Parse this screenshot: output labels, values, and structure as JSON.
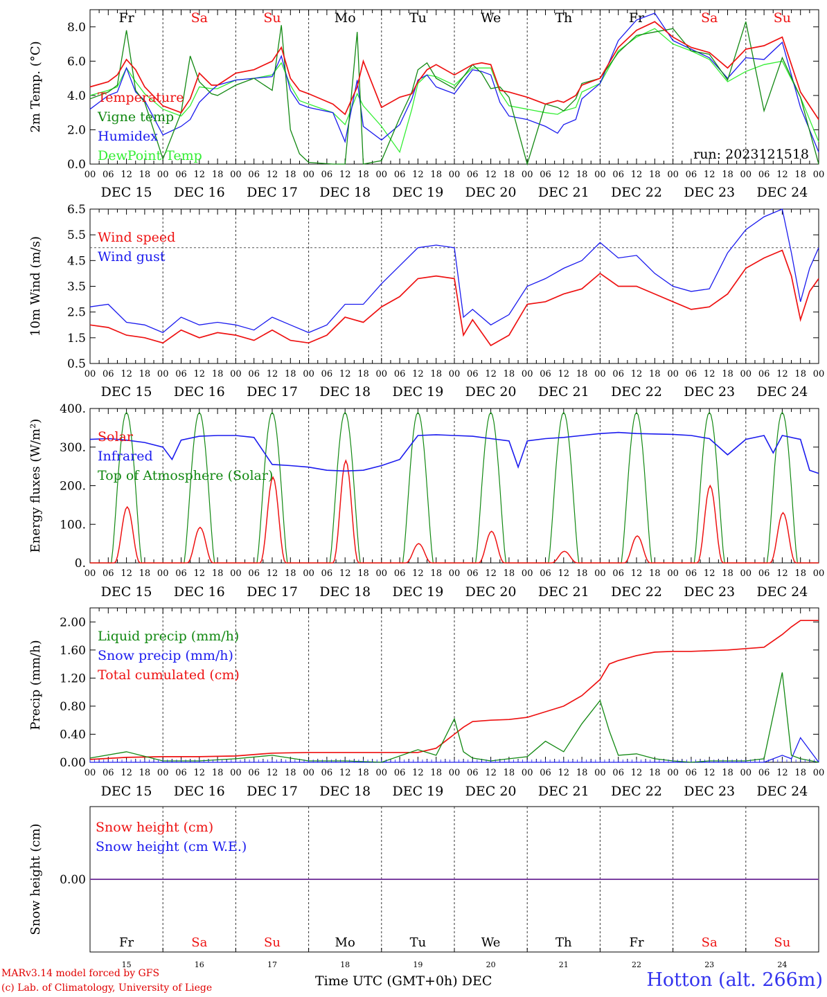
{
  "colors": {
    "temperature": "#ee1111",
    "vigne": "#118811",
    "humidex": "#1a1aee",
    "dewpoint": "#33ee33",
    "wind_speed": "#ee1111",
    "wind_gust": "#1a1aee",
    "solar": "#ee1111",
    "infrared": "#1a1aee",
    "toa": "#118811",
    "liquid": "#118811",
    "snow_precip": "#1a1aee",
    "total_cum": "#ee1111",
    "snow_height": "#ee1111",
    "snow_we": "#1a1aee",
    "weekend": "#ee1111",
    "weekday": "#000000"
  },
  "days": {
    "top": [
      {
        "label": "Fr",
        "weekend": false
      },
      {
        "label": "Sa",
        "weekend": true
      },
      {
        "label": "Su",
        "weekend": true
      },
      {
        "label": "Mo",
        "weekend": false
      },
      {
        "label": "Tu",
        "weekend": false
      },
      {
        "label": "We",
        "weekend": false
      },
      {
        "label": "Th",
        "weekend": false
      },
      {
        "label": "Fr",
        "weekend": false
      },
      {
        "label": "Sa",
        "weekend": true
      },
      {
        "label": "Su",
        "weekend": true
      }
    ],
    "dates": [
      "DEC 15",
      "DEC 16",
      "DEC 17",
      "DEC 18",
      "DEC 19",
      "DEC 20",
      "DEC 21",
      "DEC 22",
      "DEC 23",
      "DEC 24"
    ],
    "day_numbers": [
      "15",
      "16",
      "17",
      "18",
      "19",
      "20",
      "21",
      "22",
      "23",
      "24"
    ],
    "hour_ticks": [
      "00",
      "06",
      "12",
      "18"
    ],
    "final_tick": "00"
  },
  "footer": {
    "credit_line1": "MARv3.14 model forced by GFS",
    "credit_line2": "(c) Lab. of Climatology, University of Liege",
    "x_title": "Time UTC (GMT+0h) DEC",
    "station": "Hotton (alt. 266m)"
  },
  "chart_data": [
    {
      "type": "line",
      "ylabel": "2m Temp. (°C)",
      "ylim": [
        0,
        9
      ],
      "yticks": [
        "0.0",
        "2.0",
        "4.0",
        "6.0",
        "8.0"
      ],
      "annotation": "run: 2023121518",
      "grid": "vertical dashed lines at 00 UTC",
      "legend_position": "left",
      "x_hours": [
        0,
        6,
        9,
        12,
        15,
        18,
        24,
        30,
        33,
        36,
        40,
        42,
        48,
        54,
        60,
        63,
        66,
        69,
        72,
        80,
        84,
        88,
        90,
        96,
        102,
        106,
        108,
        111,
        114,
        120,
        126,
        129,
        132,
        135,
        138,
        144,
        150,
        154,
        156,
        160,
        162,
        168,
        174,
        180,
        186,
        192,
        198,
        204,
        210,
        216,
        222,
        228,
        234,
        240
      ],
      "series": [
        {
          "name": "Temperature",
          "color_key": "temperature",
          "values": [
            4.5,
            4.8,
            5.2,
            6.1,
            5.5,
            4.5,
            3.4,
            3.0,
            3.8,
            5.3,
            4.6,
            4.6,
            5.3,
            5.5,
            6.0,
            6.8,
            5.0,
            4.3,
            4.1,
            3.5,
            2.9,
            4.5,
            6.0,
            3.3,
            3.9,
            4.1,
            4.8,
            5.5,
            5.8,
            5.2,
            5.8,
            5.9,
            5.8,
            4.3,
            4.2,
            3.9,
            3.5,
            3.7,
            3.6,
            4.0,
            4.6,
            5.0,
            6.8,
            7.8,
            8.3,
            7.4,
            6.8,
            6.5,
            5.6,
            6.7,
            6.9,
            7.4,
            4.2,
            2.6
          ]
        },
        {
          "name": "Vigne temp",
          "color_key": "vigne",
          "values": [
            3.8,
            4.2,
            4.6,
            7.8,
            4.3,
            3.6,
            0.3,
            3.0,
            6.3,
            4.8,
            4.1,
            4.0,
            4.6,
            5.0,
            4.3,
            8.1,
            2.0,
            0.6,
            0.1,
            0.0,
            0.0,
            7.7,
            0.0,
            0.2,
            2.7,
            4.2,
            5.5,
            5.9,
            5.0,
            4.4,
            5.8,
            5.3,
            4.4,
            4.5,
            3.9,
            0.0,
            3.5,
            3.3,
            3.1,
            3.8,
            4.7,
            5.0,
            6.5,
            7.5,
            7.7,
            7.9,
            6.6,
            6.4,
            4.9,
            8.3,
            3.1,
            6.2,
            3.9,
            0.0
          ]
        },
        {
          "name": "Humidex",
          "color_key": "humidex",
          "values": [
            3.2,
            4.0,
            4.2,
            5.6,
            4.2,
            3.7,
            1.7,
            2.2,
            2.6,
            3.6,
            4.3,
            4.6,
            4.9,
            5.0,
            5.1,
            6.3,
            4.3,
            3.5,
            3.3,
            3.0,
            1.3,
            4.9,
            2.2,
            1.4,
            2.3,
            3.8,
            4.9,
            5.2,
            4.5,
            4.1,
            5.5,
            5.4,
            5.2,
            3.6,
            2.8,
            2.6,
            2.2,
            1.8,
            2.3,
            2.6,
            3.8,
            4.7,
            7.2,
            8.4,
            8.8,
            7.2,
            6.7,
            6.2,
            5.0,
            6.2,
            6.1,
            7.1,
            3.3,
            0.7
          ]
        },
        {
          "name": "DewPoint Temp",
          "color_key": "dewpoint",
          "values": [
            4.0,
            4.3,
            4.5,
            5.6,
            4.8,
            4.1,
            3.2,
            2.8,
            3.4,
            4.5,
            4.4,
            4.4,
            4.9,
            5.0,
            5.2,
            5.9,
            4.6,
            3.7,
            3.5,
            3.0,
            2.3,
            4.1,
            3.4,
            2.2,
            0.7,
            3.2,
            4.7,
            5.2,
            5.1,
            4.6,
            5.6,
            5.6,
            5.6,
            4.2,
            3.4,
            3.2,
            3.0,
            2.9,
            3.1,
            3.3,
            4.2,
            4.7,
            6.6,
            7.4,
            7.9,
            7.0,
            6.6,
            6.1,
            4.8,
            5.4,
            5.8,
            6.0,
            3.9,
            1.3
          ]
        }
      ]
    },
    {
      "type": "line",
      "ylabel": "10m Wind (m/s)",
      "ylim": [
        0.5,
        6.5
      ],
      "yticks": [
        "0.5",
        "1.5",
        "2.5",
        "3.5",
        "4.5",
        "5.5",
        "6.5"
      ],
      "reference_line": 5.0,
      "legend_position": "left",
      "x_hours": [
        0,
        6,
        12,
        18,
        24,
        30,
        36,
        42,
        48,
        54,
        60,
        66,
        72,
        78,
        84,
        90,
        96,
        102,
        108,
        114,
        120,
        123,
        126,
        132,
        138,
        144,
        150,
        156,
        162,
        168,
        174,
        180,
        186,
        192,
        198,
        204,
        210,
        216,
        222,
        228,
        231,
        234,
        237,
        240
      ],
      "series": [
        {
          "name": "Wind speed",
          "color_key": "wind_speed",
          "values": [
            2.0,
            1.9,
            1.6,
            1.5,
            1.3,
            1.8,
            1.5,
            1.7,
            1.6,
            1.4,
            1.8,
            1.4,
            1.3,
            1.6,
            2.3,
            2.1,
            2.7,
            3.1,
            3.8,
            3.9,
            3.8,
            1.6,
            2.2,
            1.2,
            1.6,
            2.8,
            2.9,
            3.2,
            3.4,
            4.0,
            3.5,
            3.5,
            3.2,
            2.9,
            2.6,
            2.7,
            3.2,
            4.2,
            4.6,
            4.9,
            3.9,
            2.2,
            3.3,
            3.8
          ]
        },
        {
          "name": "Wind gust",
          "color_key": "wind_gust",
          "values": [
            2.7,
            2.8,
            2.1,
            2.0,
            1.7,
            2.3,
            2.0,
            2.1,
            2.0,
            1.8,
            2.3,
            2.0,
            1.7,
            2.0,
            2.8,
            2.8,
            3.6,
            4.3,
            5.0,
            5.1,
            5.0,
            2.3,
            2.6,
            2.0,
            2.4,
            3.5,
            3.8,
            4.2,
            4.5,
            5.2,
            4.6,
            4.7,
            4.0,
            3.5,
            3.3,
            3.4,
            4.8,
            5.7,
            6.2,
            6.5,
            4.8,
            2.9,
            4.2,
            5.0
          ]
        }
      ]
    },
    {
      "type": "line",
      "ylabel": "Energy fluxes (W/m²)",
      "ylim": [
        0,
        400
      ],
      "yticks": [
        "0.",
        "100.",
        "200.",
        "300.",
        "400."
      ],
      "legend_position": "left",
      "series": [
        {
          "name": "Solar",
          "color_key": "solar",
          "daily_peaks": [
            145,
            92,
            222,
            265,
            50,
            82,
            30,
            70,
            200,
            130
          ]
        },
        {
          "name": "Infrared",
          "color_key": "infrared",
          "x_hours": [
            0,
            6,
            12,
            18,
            24,
            27,
            30,
            36,
            42,
            48,
            54,
            60,
            66,
            72,
            78,
            84,
            90,
            96,
            102,
            108,
            114,
            120,
            126,
            132,
            138,
            141,
            144,
            150,
            156,
            162,
            168,
            174,
            180,
            186,
            192,
            198,
            204,
            210,
            216,
            222,
            225,
            228,
            234,
            237,
            240
          ],
          "values": [
            320,
            322,
            318,
            312,
            300,
            268,
            318,
            328,
            330,
            330,
            325,
            255,
            252,
            248,
            240,
            238,
            240,
            252,
            268,
            330,
            332,
            330,
            328,
            322,
            316,
            248,
            316,
            322,
            325,
            330,
            335,
            338,
            335,
            334,
            333,
            330,
            322,
            280,
            320,
            330,
            285,
            330,
            320,
            240,
            232
          ]
        },
        {
          "name": "Top of Atmosphere (Solar)",
          "color_key": "toa",
          "daily_peak": 390
        }
      ]
    },
    {
      "type": "line",
      "ylabel": "Precip (mm/h)",
      "ylim": [
        0,
        2.2
      ],
      "yticks": [
        "0.00",
        "0.40",
        "0.80",
        "1.20",
        "1.60",
        "2.00"
      ],
      "legend_position": "left",
      "x_hours": [
        0,
        12,
        24,
        36,
        48,
        60,
        72,
        84,
        96,
        108,
        114,
        120,
        123,
        126,
        132,
        138,
        144,
        150,
        156,
        162,
        168,
        171,
        174,
        180,
        186,
        192,
        198,
        204,
        210,
        216,
        222,
        228,
        231,
        234,
        240
      ],
      "series": [
        {
          "name": "Liquid precip (mm/h)",
          "color_key": "liquid",
          "values": [
            0.06,
            0.15,
            0.02,
            0.02,
            0.05,
            0.1,
            0.02,
            0.02,
            0.0,
            0.18,
            0.1,
            0.62,
            0.15,
            0.06,
            0.02,
            0.05,
            0.08,
            0.3,
            0.15,
            0.55,
            0.88,
            0.45,
            0.1,
            0.12,
            0.05,
            0.02,
            0.0,
            0.02,
            0.02,
            0.02,
            0.05,
            1.28,
            0.1,
            0.05,
            0.0
          ]
        },
        {
          "name": "Snow precip (mm/h)",
          "color_key": "snow_precip",
          "values": [
            0.0,
            0.0,
            0.0,
            0.0,
            0.0,
            0.0,
            0.0,
            0.0,
            0.0,
            0.0,
            0.0,
            0.0,
            0.0,
            0.0,
            0.0,
            0.0,
            0.0,
            0.0,
            0.0,
            0.0,
            0.0,
            0.0,
            0.0,
            0.0,
            0.0,
            0.0,
            0.0,
            0.0,
            0.0,
            0.0,
            0.0,
            0.1,
            0.05,
            0.35,
            0.0
          ]
        },
        {
          "name": "Total cumulated (cm)",
          "color_key": "total_cum",
          "values": [
            0.04,
            0.07,
            0.08,
            0.08,
            0.09,
            0.13,
            0.14,
            0.14,
            0.14,
            0.14,
            0.2,
            0.4,
            0.5,
            0.58,
            0.6,
            0.61,
            0.64,
            0.72,
            0.8,
            0.95,
            1.18,
            1.4,
            1.45,
            1.52,
            1.57,
            1.58,
            1.58,
            1.59,
            1.6,
            1.62,
            1.64,
            1.82,
            1.93,
            2.02,
            2.02
          ]
        }
      ]
    },
    {
      "type": "line",
      "ylabel": "Snow height (cm)",
      "ylim": [
        -1,
        1
      ],
      "yticks": [
        "0.00"
      ],
      "legend_position": "left",
      "x_hours": [
        0,
        240
      ],
      "series": [
        {
          "name": "Snow height (cm)",
          "color_key": "snow_height",
          "values": [
            0.0,
            0.0
          ]
        },
        {
          "name": "Snow height (cm W.E.)",
          "color_key": "snow_we",
          "values": [
            0.0,
            0.0
          ]
        }
      ]
    }
  ]
}
